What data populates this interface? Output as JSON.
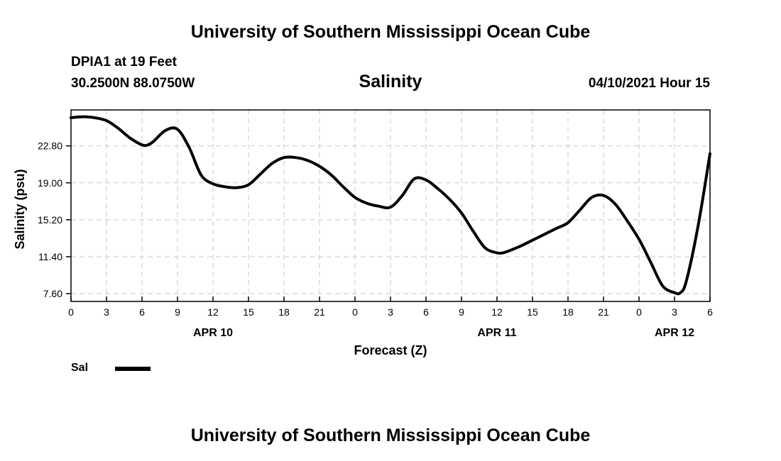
{
  "header": {
    "title": "University of Southern Mississippi Ocean Cube",
    "station": "DPIA1 at 19 Feet",
    "coords": "30.2500N  88.0750W",
    "subtitle": "Salinity",
    "datetime": "04/10/2021 Hour 15"
  },
  "footer": {
    "title": "University of Southern Mississippi Ocean Cube"
  },
  "legend": {
    "label": "Sal"
  },
  "chart_data": {
    "type": "line",
    "title": "Salinity",
    "xlabel": "Forecast (Z)",
    "ylabel": "Salinity (psu)",
    "ylim": [
      6.8,
      26.5
    ],
    "xlim": [
      0,
      54
    ],
    "yticks": [
      "22.80",
      "19.00",
      "15.20",
      "11.40",
      "7.60"
    ],
    "ytick_values": [
      22.8,
      19.0,
      15.2,
      11.4,
      7.6
    ],
    "xticks": [
      "0",
      "3",
      "6",
      "9",
      "12",
      "15",
      "18",
      "21",
      "0",
      "3",
      "6",
      "9",
      "12",
      "15",
      "18",
      "21",
      "0",
      "3",
      "6"
    ],
    "date_labels": [
      {
        "text": "APR 10",
        "at_tick": 4
      },
      {
        "text": "APR 11",
        "at_tick": 12
      },
      {
        "text": "APR 12",
        "at_tick": 17
      }
    ],
    "grid": true,
    "legend_position": "bottom-left",
    "series": [
      {
        "name": "Sal",
        "color": "#000000",
        "x": [
          0,
          1,
          2,
          3,
          4,
          5,
          6,
          6.5,
          7,
          8,
          9,
          10,
          11,
          12,
          13,
          14,
          15,
          16,
          17,
          18,
          19,
          20,
          21,
          22,
          23,
          24,
          25,
          26,
          27,
          28,
          29,
          30,
          31,
          32,
          33,
          34,
          35,
          36,
          36.5,
          37,
          38,
          39,
          40,
          41,
          42,
          43,
          44,
          45,
          46,
          47,
          48,
          49,
          50,
          51,
          51.5,
          52,
          53,
          54
        ],
        "values": [
          25.7,
          25.8,
          25.7,
          25.4,
          24.6,
          23.6,
          22.9,
          22.9,
          23.3,
          24.4,
          24.5,
          22.6,
          19.8,
          18.9,
          18.6,
          18.5,
          18.8,
          19.9,
          21.0,
          21.6,
          21.6,
          21.3,
          20.7,
          19.8,
          18.6,
          17.5,
          16.9,
          16.6,
          16.5,
          17.7,
          19.4,
          19.3,
          18.4,
          17.3,
          15.9,
          14.0,
          12.3,
          11.8,
          11.8,
          12.0,
          12.5,
          13.1,
          13.7,
          14.3,
          14.9,
          16.2,
          17.5,
          17.7,
          16.8,
          15.1,
          13.2,
          10.8,
          8.4,
          7.7,
          7.7,
          8.9,
          14.6,
          22.0
        ]
      }
    ]
  }
}
